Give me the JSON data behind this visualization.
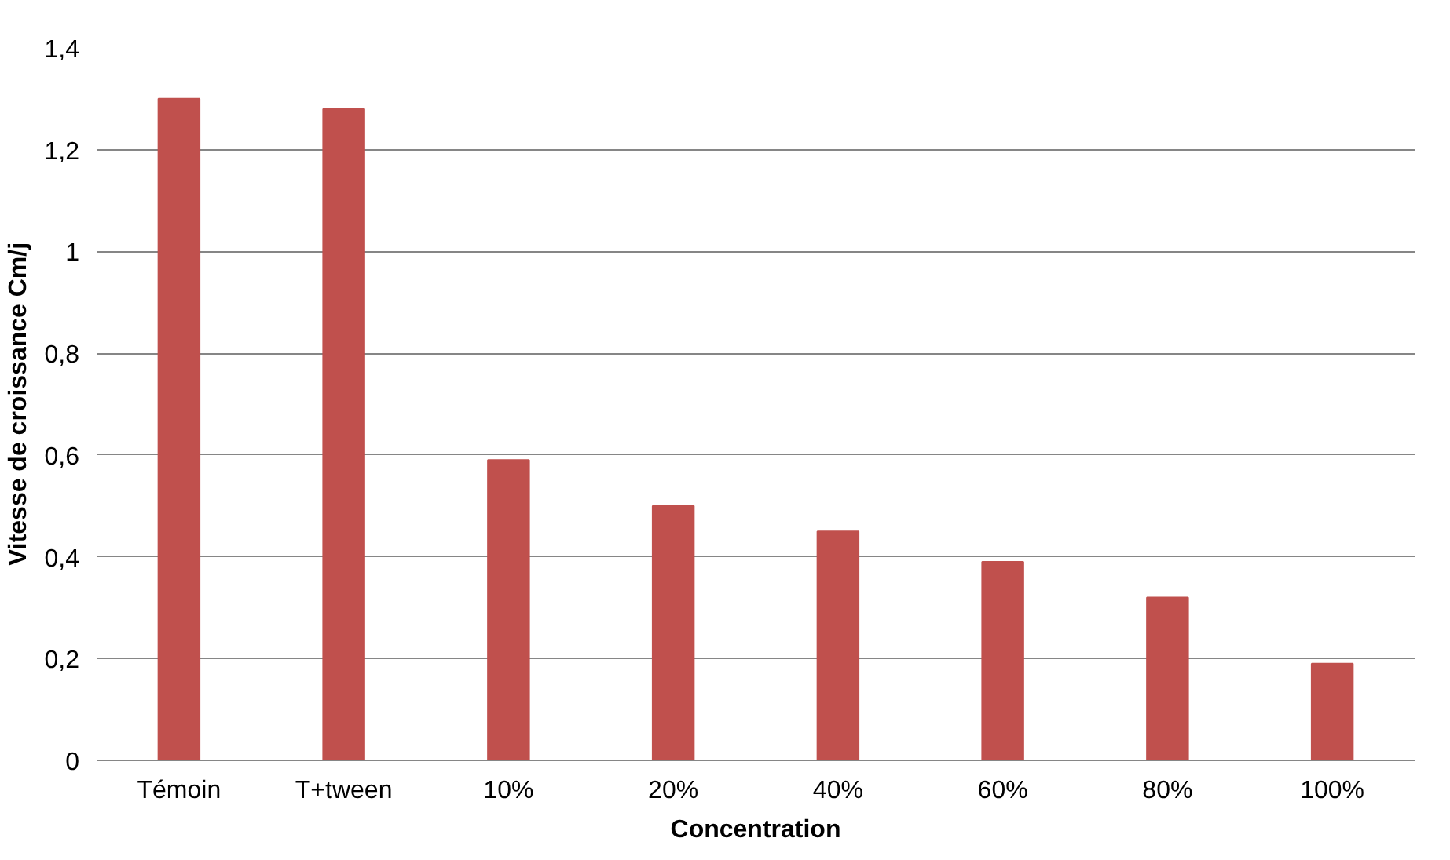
{
  "chart_data": {
    "type": "bar",
    "xlabel": "Concentration",
    "ylabel": "Vitesse de croissance Cm/j",
    "categories": [
      "Témoin",
      "T+tween",
      "10%",
      "20%",
      "40%",
      "60%",
      "80%",
      "100%"
    ],
    "values": [
      1.3,
      1.28,
      0.59,
      0.5,
      0.45,
      0.39,
      0.32,
      0.19
    ],
    "color": "#c0504d",
    "ylim": [
      0,
      1.4
    ],
    "yticks": [
      0,
      {
        "value": 0.2,
        "label": "0,2"
      },
      {
        "value": 0.4,
        "label": "0,4"
      },
      {
        "value": 0.6,
        "label": "0,6"
      },
      {
        "value": 0.8,
        "label": "0,8"
      },
      1,
      {
        "value": 1.2,
        "label": "1,2"
      },
      {
        "value": 1.4,
        "label": "1,4"
      }
    ],
    "grid": "y"
  }
}
